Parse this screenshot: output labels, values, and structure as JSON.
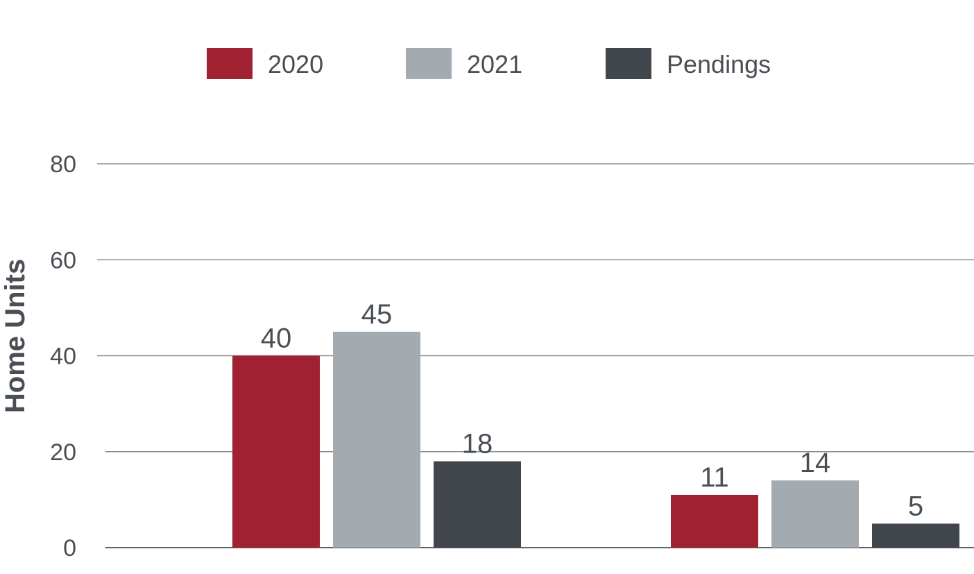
{
  "colors": {
    "background": "#ffffff",
    "grid": "#8a8d90",
    "axis": "#5e6165",
    "text": "#4a4f55",
    "series_2020": "#a02232",
    "series_2021": "#a3abb0",
    "series_pendings": "#40464c"
  },
  "chart_data": {
    "type": "bar",
    "categories": [
      "",
      ""
    ],
    "series": [
      {
        "name": "2020",
        "values": [
          40,
          11
        ],
        "color": "#a02232"
      },
      {
        "name": "2021",
        "values": [
          45,
          14
        ],
        "color": "#a3abb0"
      },
      {
        "name": "Pendings",
        "values": [
          18,
          5
        ],
        "color": "#40464c"
      }
    ],
    "data_labels": [
      [
        "40",
        "11"
      ],
      [
        "45",
        "14"
      ],
      [
        "18",
        "5"
      ]
    ],
    "ylabel": "Home Units",
    "ylim": [
      0,
      80
    ],
    "yticks": [
      0,
      20,
      40,
      60,
      80
    ],
    "ytick_labels": [
      "0",
      "20",
      "40",
      "60",
      "80"
    ],
    "grid": true,
    "legend_placement": "top-center"
  }
}
